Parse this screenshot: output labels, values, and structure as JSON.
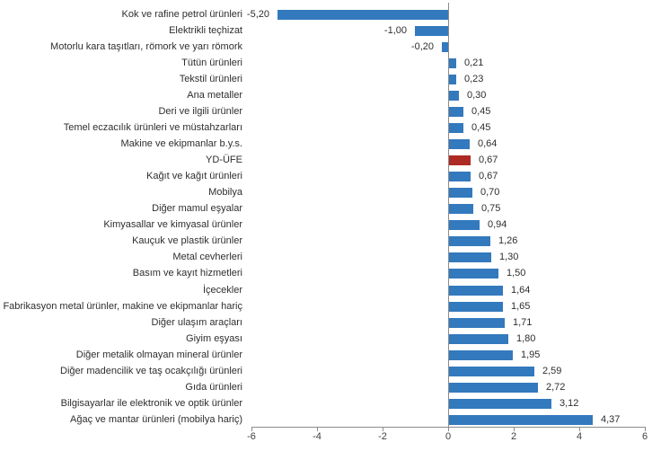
{
  "chart_data": {
    "type": "bar",
    "orientation": "horizontal",
    "title": "",
    "xlabel": "",
    "ylabel": "",
    "xlim": [
      -6,
      6
    ],
    "grid": false,
    "legend": "none",
    "bar_color": "#3379BD",
    "highlight_color": "#AE2A24",
    "highlight_index": 9,
    "highlight_category": "YD-ÜFE",
    "axis_color": "#8c8c8c",
    "background_color": "#ffffff",
    "x_ticks": [
      "-6",
      "-4",
      "-2",
      "0",
      "2",
      "4",
      "6"
    ],
    "x_tick_values": [
      -6,
      -4,
      -2,
      0,
      2,
      4,
      6
    ],
    "categories": [
      "Kok ve rafine petrol ürünleri",
      "Elektrikli teçhizat",
      "Motorlu kara taşıtları, römork ve yarı römork",
      "Tütün ürünleri",
      "Tekstil ürünleri",
      "Ana metaller",
      "Deri ve ilgili ürünler",
      "Temel eczacılık ürünleri ve müstahzarları",
      "Makine ve ekipmanlar b.y.s.",
      "YD-ÜFE",
      "Kağıt ve kağıt ürünleri",
      "Mobilya",
      "Diğer mamul eşyalar",
      "Kimyasallar ve kimyasal ürünler",
      "Kauçuk ve plastik ürünler",
      "Metal cevherleri",
      "Basım ve kayıt hizmetleri",
      "İçecekler",
      "Fabrikasyon metal ürünler, makine ve ekipmanlar hariç",
      "Diğer ulaşım araçları",
      "Giyim eşyası",
      "Diğer metalik olmayan mineral ürünler",
      "Diğer madencilik ve taş ocakçılığı ürünleri",
      "Gıda ürünleri",
      "Bilgisayarlar ile elektronik ve optik ürünler",
      "Ağaç ve mantar ürünleri (mobilya hariç)"
    ],
    "values": [
      -5.2,
      -1.0,
      -0.2,
      0.21,
      0.23,
      0.3,
      0.45,
      0.45,
      0.64,
      0.67,
      0.67,
      0.7,
      0.75,
      0.94,
      1.26,
      1.3,
      1.5,
      1.64,
      1.65,
      1.71,
      1.8,
      1.95,
      2.59,
      2.72,
      3.12,
      4.37
    ],
    "value_labels": [
      "-5,20",
      "-1,00",
      "-0,20",
      "0,21",
      "0,23",
      "0,30",
      "0,45",
      "0,45",
      "0,64",
      "0,67",
      "0,67",
      "0,70",
      "0,75",
      "0,94",
      "1,26",
      "1,30",
      "1,50",
      "1,64",
      "1,65",
      "1,71",
      "1,80",
      "1,95",
      "2,59",
      "2,72",
      "3,12",
      "4,37"
    ]
  }
}
